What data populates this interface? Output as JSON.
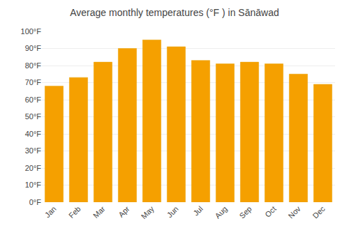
{
  "chart_data": {
    "type": "bar",
    "title": "Average monthly temperatures (°F ) in Sānāwad",
    "categories": [
      "Jan",
      "Feb",
      "Mar",
      "Apr",
      "May",
      "Jun",
      "Jul",
      "Aug",
      "Sep",
      "Oct",
      "Nov",
      "Dec"
    ],
    "values": [
      68,
      73,
      82,
      90,
      95,
      91,
      83,
      81,
      82,
      81,
      75,
      69
    ],
    "color": "#F5A000",
    "ylim": [
      0,
      100
    ],
    "yticks": [
      {
        "value": 0,
        "label": "0°F"
      },
      {
        "value": 10,
        "label": "10°F"
      },
      {
        "value": 20,
        "label": "20°F"
      },
      {
        "value": 30,
        "label": "30°F"
      },
      {
        "value": 40,
        "label": "40°F"
      },
      {
        "value": 50,
        "label": "50°F"
      },
      {
        "value": 60,
        "label": "60°F"
      },
      {
        "value": 70,
        "label": "70°F"
      },
      {
        "value": 80,
        "label": "80°F"
      },
      {
        "value": 90,
        "label": "90°F"
      },
      {
        "value": 100,
        "label": "100°F"
      }
    ],
    "grid": true
  }
}
